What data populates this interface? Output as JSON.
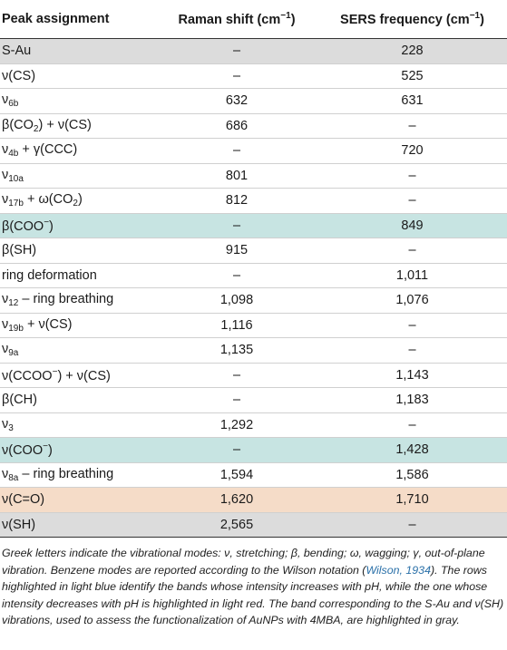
{
  "table": {
    "headers": {
      "col1": "Peak assignment",
      "col2": "Raman shift (cm",
      "col2_sup": "−1",
      "col2_end": ")",
      "col3": "SERS frequency (cm",
      "col3_sup": "−1",
      "col3_end": ")"
    },
    "rows": [
      {
        "a": "S-Au",
        "s": "",
        "r": "–",
        "f": "228",
        "hl": "gray"
      },
      {
        "a": "ν(CS)",
        "s": "",
        "r": "–",
        "f": "525",
        "hl": ""
      },
      {
        "a": "ν",
        "s": "6b",
        "r": "632",
        "f": "631",
        "hl": ""
      },
      {
        "a": "β(CO",
        "s": "2",
        "t": ") + ν(CS)",
        "r": "686",
        "f": "–",
        "hl": ""
      },
      {
        "a": "ν",
        "s": "4b",
        "t": " + γ(CCC)",
        "r": "–",
        "f": "720",
        "hl": ""
      },
      {
        "a": "ν",
        "s": "10a",
        "r": "801",
        "f": "–",
        "hl": ""
      },
      {
        "a": "ν",
        "s": "17b",
        "t": " + ω(CO",
        "s2": "2",
        "t2": ")",
        "r": "812",
        "f": "–",
        "hl": ""
      },
      {
        "a": "β(COO",
        "sup": "−",
        "t": ")",
        "r": "–",
        "f": "849",
        "hl": "blue"
      },
      {
        "a": "β(SH)",
        "r": "915",
        "f": "–",
        "hl": ""
      },
      {
        "a": "ring deformation",
        "r": "–",
        "f": "1,011",
        "hl": ""
      },
      {
        "a": "ν",
        "s": "12",
        "t": " – ring breathing",
        "r": "1,098",
        "f": "1,076",
        "hl": ""
      },
      {
        "a": "ν",
        "s": "19b",
        "t": " + ν(CS)",
        "r": "1,116",
        "f": "–",
        "hl": ""
      },
      {
        "a": "ν",
        "s": "9a",
        "r": "1,135",
        "f": "–",
        "hl": ""
      },
      {
        "a": "ν(CCOO",
        "sup": "−",
        "t": ") + ν(CS)",
        "r": "–",
        "f": "1,143",
        "hl": ""
      },
      {
        "a": "β(CH)",
        "r": "–",
        "f": "1,183",
        "hl": ""
      },
      {
        "a": "ν",
        "s": "3",
        "r": "1,292",
        "f": "–",
        "hl": ""
      },
      {
        "a": "ν(COO",
        "sup": "−",
        "t": ")",
        "r": "–",
        "f": "1,428",
        "hl": "blue"
      },
      {
        "a": "ν",
        "s": "8a",
        "t": " – ring breathing",
        "r": "1,594",
        "f": "1,586",
        "hl": ""
      },
      {
        "a": "ν(C=O)",
        "r": "1,620",
        "f": "1,710",
        "hl": "red"
      },
      {
        "a": "ν(SH)",
        "r": "2,565",
        "f": "–",
        "hl": "gray"
      }
    ]
  },
  "caption": {
    "part1": "Greek letters indicate the vibrational modes: ν, stretching; β, bending; ω, wagging; γ, out-of-plane vibration. Benzene modes are reported according to the Wilson notation (",
    "link": "Wilson, 1934",
    "part2": "). The rows highlighted in light blue identify the bands whose intensity increases with pH, while the one whose intensity decreases with pH is highlighted in light red. The band corresponding to the S-Au and ν(SH) vibrations, used to assess the functionalization of AuNPs with 4MBA, are highlighted in gray."
  }
}
